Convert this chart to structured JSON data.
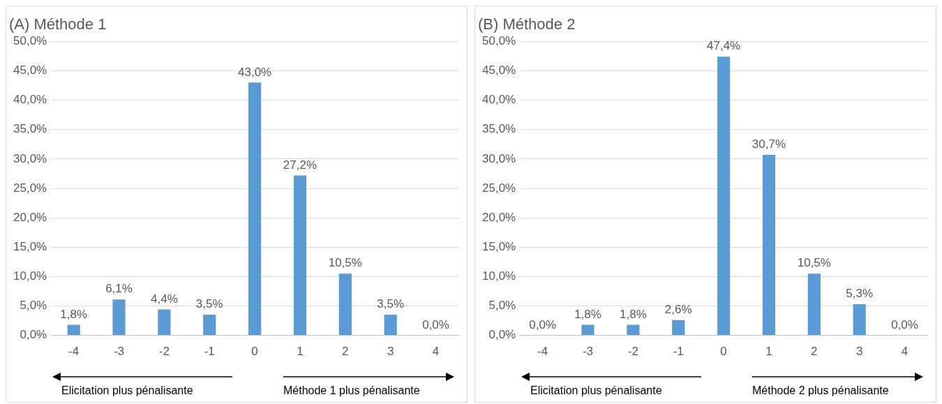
{
  "chart_data": [
    {
      "type": "bar",
      "title": "(A) Méthode 1",
      "categories": [
        "-4",
        "-3",
        "-2",
        "-1",
        "0",
        "1",
        "2",
        "3",
        "4"
      ],
      "values": [
        1.8,
        6.1,
        4.4,
        3.5,
        43.0,
        27.2,
        10.5,
        3.5,
        0.0
      ],
      "value_labels": [
        "1,8%",
        "6,1%",
        "4,4%",
        "3,5%",
        "43,0%",
        "27,2%",
        "10,5%",
        "3,5%",
        "0,0%"
      ],
      "color": "#5b9bd5",
      "ylim": [
        0,
        50
      ],
      "yticks": [
        {
          "value": 0,
          "label": "0,0%"
        },
        {
          "value": 5,
          "label": "5,0%"
        },
        {
          "value": 10,
          "label": "10,0%"
        },
        {
          "value": 15,
          "label": "15,0%"
        },
        {
          "value": 20,
          "label": "20,0%"
        },
        {
          "value": 25,
          "label": "25,0%"
        },
        {
          "value": 30,
          "label": "30,0%"
        },
        {
          "value": 35,
          "label": "35,0%"
        },
        {
          "value": 40,
          "label": "40,0%"
        },
        {
          "value": 45,
          "label": "45,0%"
        },
        {
          "value": 50,
          "label": "50,0%"
        }
      ],
      "grid": "y",
      "annotations": [
        "Elicitation plus pénalisante",
        "Méthode 1 plus pénalisante"
      ]
    },
    {
      "type": "bar",
      "title": "(B) Méthode 2",
      "categories": [
        "-4",
        "-3",
        "-2",
        "-1",
        "0",
        "1",
        "2",
        "3",
        "4"
      ],
      "values": [
        0.0,
        1.8,
        1.8,
        2.6,
        47.4,
        30.7,
        10.5,
        5.3,
        0.0
      ],
      "value_labels": [
        "0,0%",
        "1,8%",
        "1,8%",
        "2,6%",
        "47,4%",
        "30,7%",
        "10,5%",
        "5,3%",
        "0,0%"
      ],
      "color": "#5b9bd5",
      "ylim": [
        0,
        50
      ],
      "yticks": [
        {
          "value": 0,
          "label": "0,0%"
        },
        {
          "value": 5,
          "label": "5,0%"
        },
        {
          "value": 10,
          "label": "10,0%"
        },
        {
          "value": 15,
          "label": "15,0%"
        },
        {
          "value": 20,
          "label": "20,0%"
        },
        {
          "value": 25,
          "label": "25,0%"
        },
        {
          "value": 30,
          "label": "30,0%"
        },
        {
          "value": 35,
          "label": "35,0%"
        },
        {
          "value": 40,
          "label": "40,0%"
        },
        {
          "value": 45,
          "label": "45,0%"
        },
        {
          "value": 50,
          "label": "50,0%"
        }
      ],
      "grid": "y",
      "annotations": [
        "Elicitation plus pénalisante",
        "Méthode 2 plus pénalisante"
      ]
    }
  ]
}
